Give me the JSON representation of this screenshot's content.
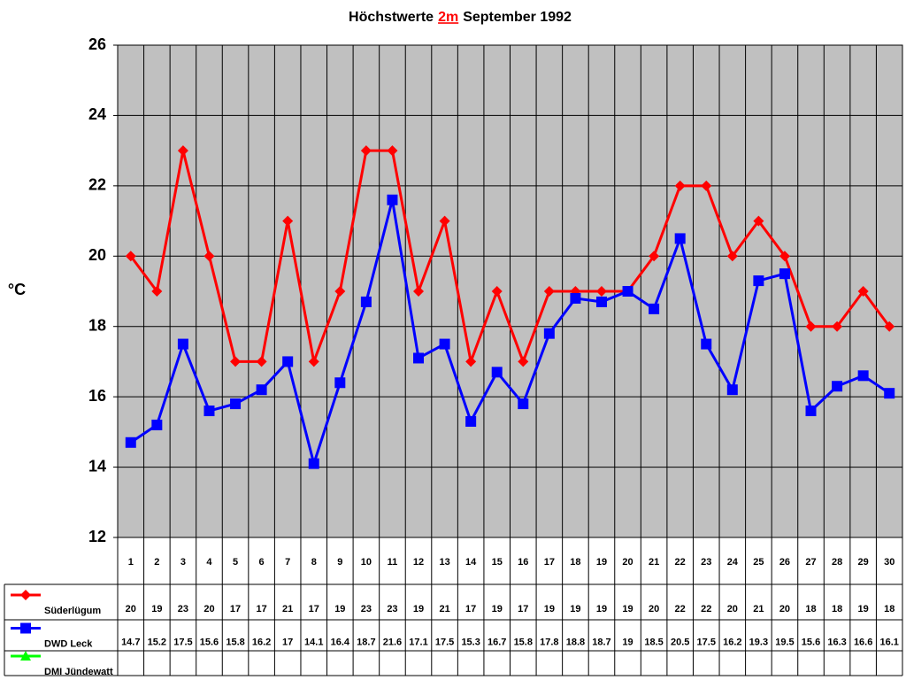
{
  "chart_data": {
    "type": "line",
    "title_parts": [
      "Höchstwerte",
      "2m",
      "September 1992"
    ],
    "y_label": "°C",
    "categories": [
      1,
      2,
      3,
      4,
      5,
      6,
      7,
      8,
      9,
      10,
      11,
      12,
      13,
      14,
      15,
      16,
      17,
      18,
      19,
      20,
      21,
      22,
      23,
      24,
      25,
      26,
      27,
      28,
      29,
      30
    ],
    "series": [
      {
        "name": "Süderlügum",
        "color": "#ff0000",
        "marker": "diamond",
        "values": [
          20,
          19,
          23,
          20,
          17,
          17,
          21,
          17,
          19,
          23,
          23,
          19,
          21,
          17,
          19,
          17,
          19,
          19,
          19,
          19,
          20,
          22,
          22,
          20,
          21,
          20,
          18,
          18,
          19,
          18
        ]
      },
      {
        "name": "DWD Leck",
        "color": "#0000ff",
        "marker": "square",
        "values": [
          14.7,
          15.2,
          17.5,
          15.6,
          15.8,
          16.2,
          17,
          14.1,
          16.4,
          18.7,
          21.6,
          17.1,
          17.5,
          15.3,
          16.7,
          15.8,
          17.8,
          18.8,
          18.7,
          19,
          18.5,
          20.5,
          17.5,
          16.2,
          19.3,
          19.5,
          15.6,
          16.3,
          16.6,
          16.1
        ]
      },
      {
        "name": "DMI Jündewatt",
        "color": "#00ff00",
        "marker": "triangle",
        "values": [
          null,
          null,
          null,
          null,
          null,
          null,
          null,
          null,
          null,
          null,
          null,
          null,
          null,
          null,
          null,
          null,
          null,
          null,
          null,
          null,
          null,
          null,
          null,
          null,
          null,
          null,
          null,
          null,
          null,
          null
        ]
      }
    ],
    "ylim": [
      12,
      26
    ],
    "yticks": [
      12,
      14,
      16,
      18,
      20,
      22,
      24,
      26
    ],
    "grid": true,
    "plot_color": "#c0c0c0"
  }
}
